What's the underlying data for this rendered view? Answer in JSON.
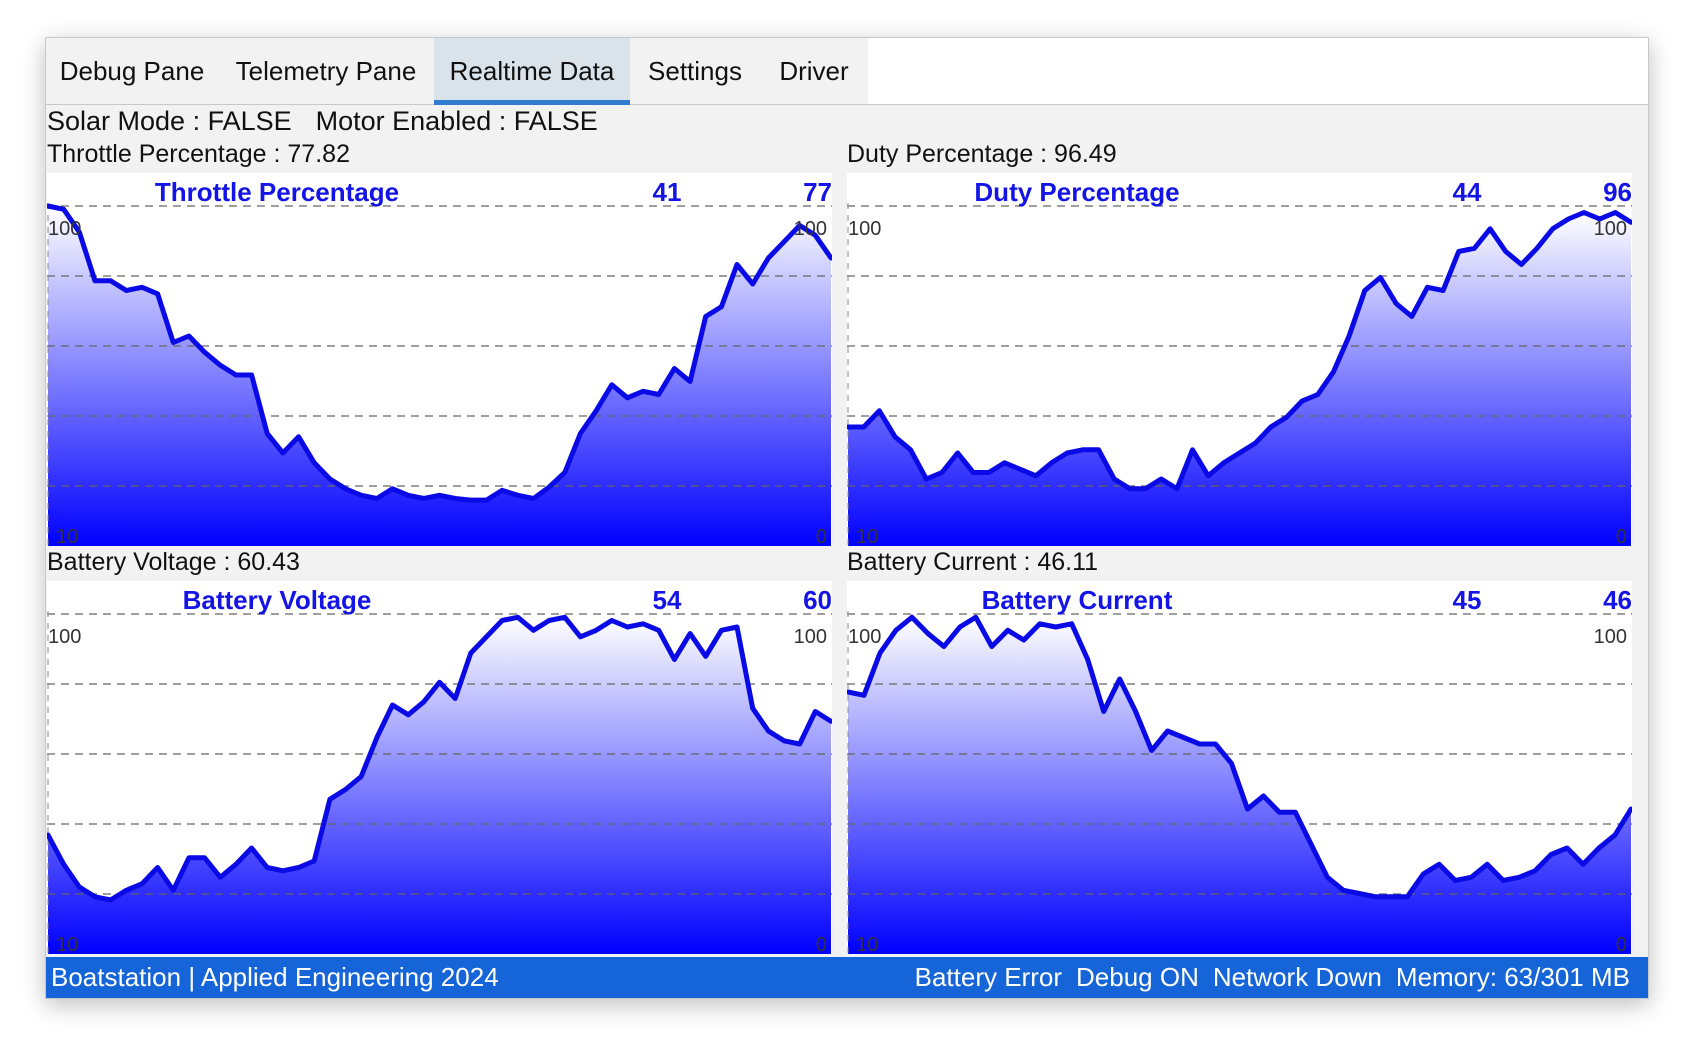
{
  "tabs": [
    {
      "label": "Debug Pane",
      "active": false
    },
    {
      "label": "Telemetry Pane",
      "active": false
    },
    {
      "label": "Realtime Data",
      "active": true
    },
    {
      "label": "Settings",
      "active": false
    },
    {
      "label": "Driver",
      "active": false
    }
  ],
  "status": {
    "solar_mode": "Solar Mode : FALSE",
    "motor_enabled": "Motor Enabled : FALSE"
  },
  "metrics": {
    "throttle": "Throttle Percentage : 77.82",
    "duty": "Duty Percentage : 96.49",
    "battery_voltage": "Battery Voltage : 60.43",
    "battery_current": "Battery Current : 46.11"
  },
  "footer": {
    "brand": "Boatstation | Applied Engineering 2024",
    "battery": "Battery Error",
    "debug": "Debug ON",
    "network": "Network Down",
    "memory": "Memory: 63/301 MB"
  },
  "colors": {
    "line": "#0a0ae6",
    "fill_top": "#ffffff",
    "fill_bottom": "#0000ff",
    "footer": "#1565d8",
    "tab_accent": "#2f7cd0"
  },
  "chart_data": [
    {
      "type": "area",
      "title": "Throttle Percentage",
      "stat1": "41",
      "stat2": "77",
      "ylim": [
        0,
        100
      ],
      "ytick_left_top": "100",
      "ytick_left_bottom": "10",
      "ytick_right_top": "100",
      "ytick_right_bottom": "0",
      "grid": "dashed",
      "values": [
        100,
        99,
        92,
        77,
        77,
        74,
        75,
        73,
        58,
        60,
        55,
        51,
        48,
        48,
        30,
        24,
        29,
        21,
        16,
        13,
        11,
        10,
        13,
        11,
        10,
        11,
        10,
        9.5,
        9.5,
        12.5,
        11,
        10,
        13.5,
        18,
        30,
        37,
        45,
        41,
        43,
        42,
        50,
        46,
        66,
        69,
        82,
        76,
        84,
        89,
        94,
        91,
        84
      ]
    },
    {
      "type": "area",
      "title": "Duty Percentage",
      "stat1": "44",
      "stat2": "96",
      "ylim": [
        0,
        100
      ],
      "ytick_left_top": "100",
      "ytick_left_bottom": "10",
      "ytick_right_top": "100",
      "ytick_right_bottom": "0",
      "grid": "dashed",
      "values": [
        32,
        32,
        37,
        29,
        25,
        16,
        18,
        24,
        18,
        18,
        21,
        19,
        17,
        21,
        24,
        25,
        25,
        16,
        13,
        13,
        16,
        13,
        25,
        17,
        21,
        24,
        27,
        32,
        35,
        40,
        42,
        49,
        60,
        74,
        78,
        70,
        66,
        75,
        74,
        86,
        87,
        93,
        86,
        82,
        87,
        93,
        96,
        98,
        96,
        98,
        95
      ]
    },
    {
      "type": "area",
      "title": "Battery Voltage",
      "stat1": "54",
      "stat2": "60",
      "ylim": [
        0,
        100
      ],
      "ytick_left_top": "100",
      "ytick_left_bottom": "10",
      "ytick_right_top": "100",
      "ytick_right_bottom": "0",
      "grid": "dashed",
      "values": [
        32,
        23,
        16,
        13,
        12,
        15,
        17,
        22,
        15,
        25,
        25,
        19,
        23,
        28,
        22,
        21,
        22,
        24,
        43,
        46,
        50,
        62,
        72,
        69,
        73,
        79,
        74,
        88,
        93,
        98,
        99,
        95,
        98,
        99,
        93,
        95,
        98,
        96,
        97,
        95,
        86,
        94,
        87,
        95,
        96,
        71,
        64,
        61,
        60,
        70,
        67
      ]
    },
    {
      "type": "area",
      "title": "Battery Current",
      "stat1": "45",
      "stat2": "46",
      "ylim": [
        0,
        100
      ],
      "ytick_left_top": "100",
      "ytick_left_bottom": "10",
      "ytick_right_top": "100",
      "ytick_right_bottom": "0",
      "grid": "dashed",
      "values": [
        76,
        75,
        88,
        95,
        99,
        94,
        90,
        96,
        99,
        90,
        95,
        92,
        97,
        96,
        97,
        86,
        70,
        80,
        70,
        58,
        64,
        62,
        60,
        60,
        54,
        40,
        44,
        39,
        39,
        29,
        19,
        15,
        14,
        13,
        13,
        13,
        20,
        23,
        18,
        19,
        23,
        18,
        19,
        21,
        26,
        28,
        23,
        28,
        32,
        40
      ]
    }
  ]
}
